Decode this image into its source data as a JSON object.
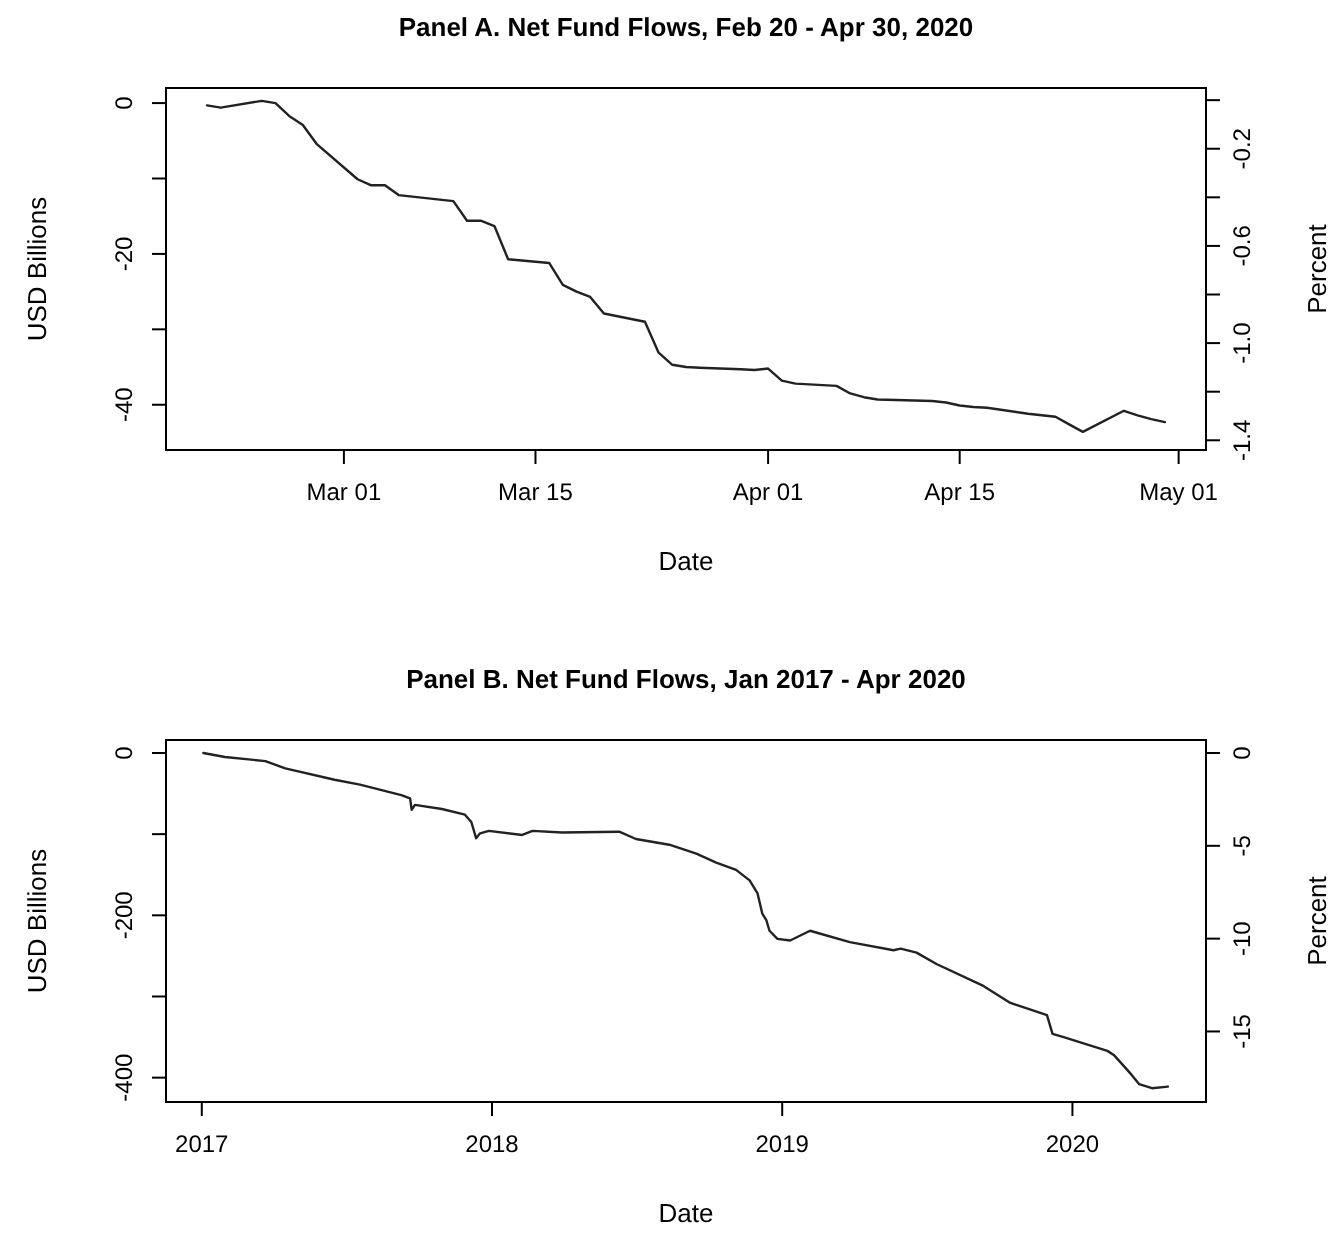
{
  "chart_data": [
    {
      "type": "line",
      "title": "Panel A. Net Fund Flows, Feb 20 - Apr 30, 2020",
      "xlabel": "Date",
      "ylabel": "USD Billions",
      "y2label": "Percent",
      "xlim": [
        "2020-02-17",
        "2020-05-03"
      ],
      "xticks": [
        {
          "value": "2020-03-01",
          "label": "Mar 01"
        },
        {
          "value": "2020-03-15",
          "label": "Mar 15"
        },
        {
          "value": "2020-04-01",
          "label": "Apr 01"
        },
        {
          "value": "2020-04-15",
          "label": "Apr 15"
        },
        {
          "value": "2020-05-01",
          "label": "May 01"
        }
      ],
      "ylim": [
        -46,
        2
      ],
      "yticks": [
        0,
        {
          "value": -10,
          "label": null
        },
        -20,
        {
          "value": -30,
          "label": null
        },
        -40
      ],
      "y2lim": [
        -1.44,
        0.05
      ],
      "y2ticks": [
        {
          "value": 0,
          "label": null
        },
        -0.2,
        {
          "value": -0.4,
          "label": null
        },
        -0.6,
        {
          "value": -0.8,
          "label": null
        },
        {
          "value": -1.0,
          "label": "-1.0"
        },
        {
          "value": -1.2,
          "label": null
        },
        -1.4
      ],
      "series": [
        {
          "color": "#222222",
          "x": [
            "2020-02-20",
            "2020-02-21",
            "2020-02-24",
            "2020-02-25",
            "2020-02-26",
            "2020-02-27",
            "2020-02-28",
            "2020-03-02",
            "2020-03-03",
            "2020-03-04",
            "2020-03-05",
            "2020-03-06",
            "2020-03-09",
            "2020-03-10",
            "2020-03-11",
            "2020-03-12",
            "2020-03-13",
            "2020-03-16",
            "2020-03-17",
            "2020-03-18",
            "2020-03-19",
            "2020-03-20",
            "2020-03-23",
            "2020-03-24",
            "2020-03-25",
            "2020-03-26",
            "2020-03-27",
            "2020-03-30",
            "2020-03-31",
            "2020-04-01",
            "2020-04-02",
            "2020-04-03",
            "2020-04-06",
            "2020-04-07",
            "2020-04-08",
            "2020-04-09",
            "2020-04-13",
            "2020-04-14",
            "2020-04-15",
            "2020-04-16",
            "2020-04-17",
            "2020-04-20",
            "2020-04-21",
            "2020-04-22",
            "2020-04-23",
            "2020-04-24",
            "2020-04-27",
            "2020-04-28",
            "2020-04-29",
            "2020-04-30"
          ],
          "values": [
            -0.3,
            -0.6,
            0.3,
            0.0,
            -1.7,
            -2.9,
            -5.4,
            -10.1,
            -10.9,
            -10.9,
            -12.2,
            -12.4,
            -13.0,
            -15.6,
            -15.6,
            -16.3,
            -20.7,
            -21.2,
            -24.1,
            -25.0,
            -25.7,
            -27.9,
            -29.0,
            -33.1,
            -34.7,
            -35.0,
            -35.1,
            -35.3,
            -35.4,
            -35.2,
            -36.8,
            -37.2,
            -37.5,
            -38.5,
            -39.0,
            -39.3,
            -39.5,
            -39.7,
            -40.1,
            -40.3,
            -40.4,
            -41.2,
            -41.4,
            -41.6,
            -42.6,
            -43.6,
            -40.8,
            -41.4,
            -41.9,
            -42.3
          ]
        }
      ]
    },
    {
      "type": "line",
      "title": "Panel B. Net Fund Flows, Jan 2017 - Apr 2020",
      "xlabel": "Date",
      "ylabel": "USD Billions",
      "y2label": "Percent",
      "xlim": [
        "2016-11-17",
        "2020-06-17"
      ],
      "xticks": [
        {
          "value": "2017",
          "label": "2017"
        },
        {
          "value": "2018",
          "label": "2018"
        },
        {
          "value": "2019",
          "label": "2019"
        },
        {
          "value": "2020",
          "label": "2020"
        }
      ],
      "ylim": [
        -430,
        16
      ],
      "yticks": [
        0,
        {
          "value": -100,
          "label": null
        },
        -200,
        {
          "value": -300,
          "label": null
        },
        -400
      ],
      "y2lim": [
        -18.8,
        0.7
      ],
      "y2ticks": [
        0,
        -5,
        -10,
        -15
      ],
      "series": [
        {
          "color": "#222222",
          "x": [
            "2017-01-03",
            "2017-01-30",
            "2017-03-22",
            "2017-04-16",
            "2017-06-17",
            "2017-07-19",
            "2017-09-09",
            "2017-09-20",
            "2017-09-22",
            "2017-09-26",
            "2017-10-30",
            "2017-11-28",
            "2017-12-06",
            "2017-12-12",
            "2017-12-17",
            "2017-12-28",
            "2018-02-08",
            "2018-02-21",
            "2018-03-30",
            "2018-06-10",
            "2018-07-01",
            "2018-08-12",
            "2018-09-15",
            "2018-10-10",
            "2018-11-04",
            "2018-11-21",
            "2018-12-01",
            "2018-12-07",
            "2018-12-12",
            "2018-12-16",
            "2018-12-26",
            "2019-01-11",
            "2019-02-05",
            "2019-03-27",
            "2019-05-21",
            "2019-05-30",
            "2019-06-19",
            "2019-07-14",
            "2019-09-11",
            "2019-10-15",
            "2019-11-30",
            "2019-12-07",
            "2019-12-21",
            "2020-02-14",
            "2020-02-22",
            "2020-03-15",
            "2020-03-25",
            "2020-04-10",
            "2020-04-30"
          ],
          "values": [
            0,
            -5,
            -10,
            -19,
            -33,
            -39,
            -52,
            -56,
            -70,
            -64,
            -69,
            -76,
            -85,
            -105,
            -99,
            -96,
            -101,
            -96,
            -98,
            -97,
            -106,
            -113,
            -124,
            -135,
            -144,
            -157,
            -173,
            -198,
            -206,
            -219,
            -229,
            -231,
            -219,
            -233,
            -243,
            -241,
            -246,
            -260,
            -287,
            -308,
            -323,
            -346,
            -350,
            -367,
            -372,
            -396,
            -408,
            -413,
            -411
          ]
        }
      ]
    }
  ]
}
